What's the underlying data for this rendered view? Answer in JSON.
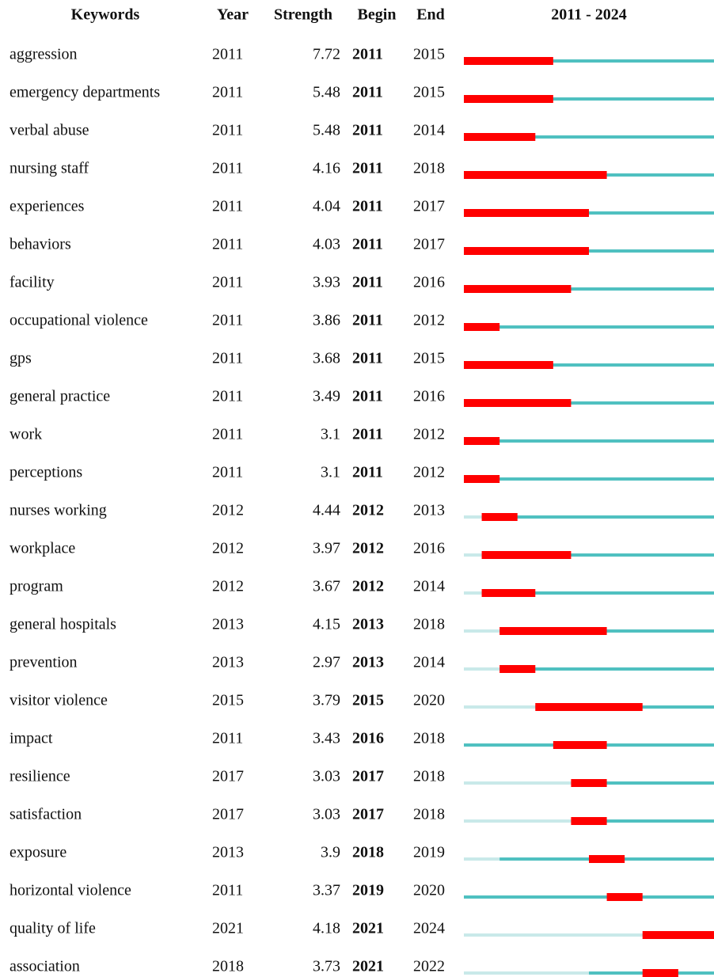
{
  "headers": {
    "keyword": "Keywords",
    "year": "Year",
    "strength": "Strength",
    "begin": "Begin",
    "end": "End",
    "timeline": "2011 - 2024"
  },
  "timeline": {
    "start": 2011,
    "end": 2024
  },
  "rows": [
    {
      "keyword": "aggression",
      "year": 2011,
      "strength": 7.72,
      "begin": 2011,
      "end": 2015
    },
    {
      "keyword": "emergency departments",
      "year": 2011,
      "strength": 5.48,
      "begin": 2011,
      "end": 2015
    },
    {
      "keyword": "verbal abuse",
      "year": 2011,
      "strength": 5.48,
      "begin": 2011,
      "end": 2014
    },
    {
      "keyword": "nursing staff",
      "year": 2011,
      "strength": 4.16,
      "begin": 2011,
      "end": 2018
    },
    {
      "keyword": "experiences",
      "year": 2011,
      "strength": 4.04,
      "begin": 2011,
      "end": 2017
    },
    {
      "keyword": "behaviors",
      "year": 2011,
      "strength": 4.03,
      "begin": 2011,
      "end": 2017
    },
    {
      "keyword": "facility",
      "year": 2011,
      "strength": 3.93,
      "begin": 2011,
      "end": 2016
    },
    {
      "keyword": "occupational violence",
      "year": 2011,
      "strength": 3.86,
      "begin": 2011,
      "end": 2012
    },
    {
      "keyword": "gps",
      "year": 2011,
      "strength": 3.68,
      "begin": 2011,
      "end": 2015
    },
    {
      "keyword": "general practice",
      "year": 2011,
      "strength": 3.49,
      "begin": 2011,
      "end": 2016
    },
    {
      "keyword": "work",
      "year": 2011,
      "strength": 3.1,
      "begin": 2011,
      "end": 2012
    },
    {
      "keyword": "perceptions",
      "year": 2011,
      "strength": 3.1,
      "begin": 2011,
      "end": 2012
    },
    {
      "keyword": "nurses working",
      "year": 2012,
      "strength": 4.44,
      "begin": 2012,
      "end": 2013
    },
    {
      "keyword": "workplace",
      "year": 2012,
      "strength": 3.97,
      "begin": 2012,
      "end": 2016
    },
    {
      "keyword": "program",
      "year": 2012,
      "strength": 3.67,
      "begin": 2012,
      "end": 2014
    },
    {
      "keyword": "general hospitals",
      "year": 2013,
      "strength": 4.15,
      "begin": 2013,
      "end": 2018
    },
    {
      "keyword": "prevention",
      "year": 2013,
      "strength": 2.97,
      "begin": 2013,
      "end": 2014
    },
    {
      "keyword": "visitor violence",
      "year": 2015,
      "strength": 3.79,
      "begin": 2015,
      "end": 2020
    },
    {
      "keyword": "impact",
      "year": 2011,
      "strength": 3.43,
      "begin": 2016,
      "end": 2018
    },
    {
      "keyword": "resilience",
      "year": 2017,
      "strength": 3.03,
      "begin": 2017,
      "end": 2018
    },
    {
      "keyword": "satisfaction",
      "year": 2017,
      "strength": 3.03,
      "begin": 2017,
      "end": 2018
    },
    {
      "keyword": "exposure",
      "year": 2013,
      "strength": 3.9,
      "begin": 2018,
      "end": 2019
    },
    {
      "keyword": "horizontal violence",
      "year": 2011,
      "strength": 3.37,
      "begin": 2019,
      "end": 2020
    },
    {
      "keyword": "quality of life",
      "year": 2021,
      "strength": 4.18,
      "begin": 2021,
      "end": 2024
    },
    {
      "keyword": "association",
      "year": 2018,
      "strength": 3.73,
      "begin": 2021,
      "end": 2022
    }
  ]
}
